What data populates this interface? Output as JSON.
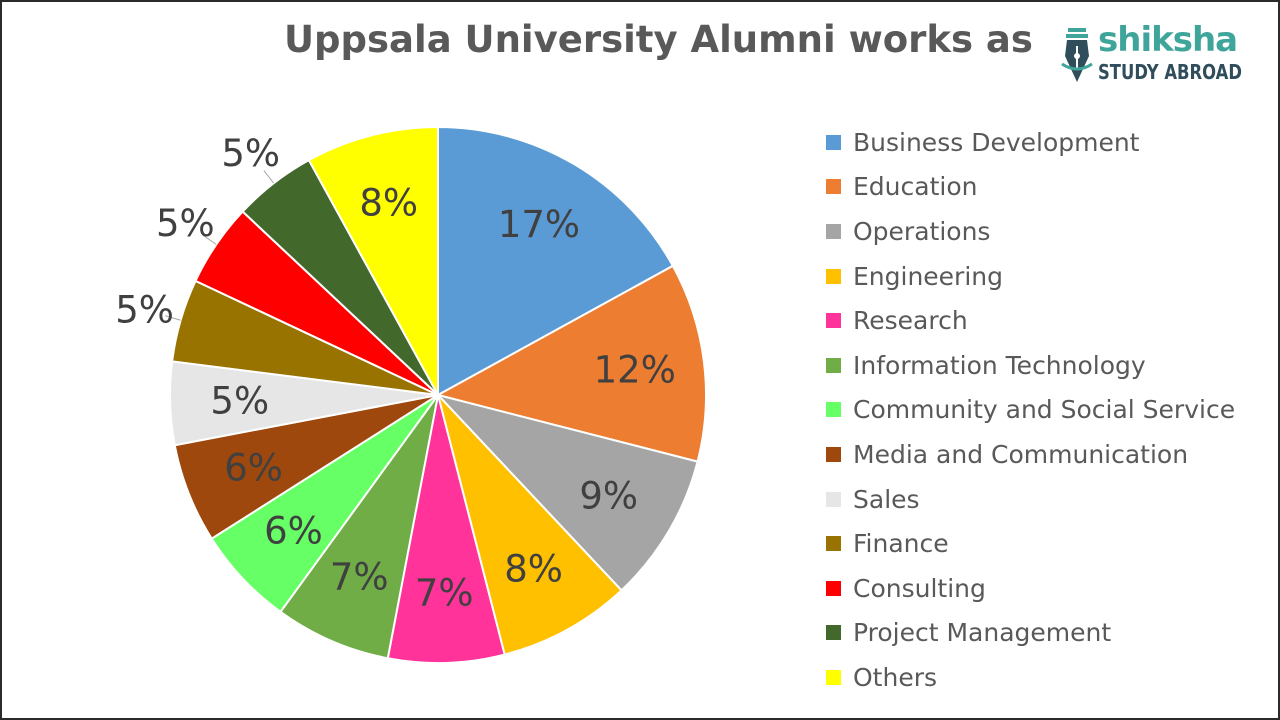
{
  "title": "Uppsala University Alumni works as",
  "logo": {
    "word": "shiksha",
    "subtitle": "STUDY ABROAD",
    "icon": "pen-nib-icon"
  },
  "colors": {
    "title": "#595959",
    "label": "#404040",
    "logo_primary": "#3fa59b",
    "logo_secondary": "#2f4d5b"
  },
  "chart_data": {
    "type": "pie",
    "title": "Uppsala University Alumni works as",
    "legend_position": "right",
    "start_angle": "top",
    "direction": "clockwise",
    "slices": [
      {
        "label": "Business Development",
        "value": 17,
        "value_label": "17%",
        "color": "#5b9bd5"
      },
      {
        "label": "Education",
        "value": 12,
        "value_label": "12%",
        "color": "#ed7d31"
      },
      {
        "label": "Operations",
        "value": 9,
        "value_label": "9%",
        "color": "#a5a5a5"
      },
      {
        "label": "Engineering",
        "value": 8,
        "value_label": "8%",
        "color": "#ffc000"
      },
      {
        "label": "Research",
        "value": 7,
        "value_label": "7%",
        "color": "#ff3399"
      },
      {
        "label": "Information Technology",
        "value": 7,
        "value_label": "7%",
        "color": "#70ad47"
      },
      {
        "label": "Community and Social Service",
        "value": 6,
        "value_label": "6%",
        "color": "#66ff66"
      },
      {
        "label": "Media and Communication",
        "value": 6,
        "value_label": "6%",
        "color": "#9e480e"
      },
      {
        "label": "Sales",
        "value": 5,
        "value_label": "5%",
        "color": "#e7e6e6"
      },
      {
        "label": "Finance",
        "value": 5,
        "value_label": "5%",
        "color": "#997300"
      },
      {
        "label": "Consulting",
        "value": 5,
        "value_label": "5%",
        "color": "#ff0000"
      },
      {
        "label": "Project Management",
        "value": 5,
        "value_label": "5%",
        "color": "#43682b"
      },
      {
        "label": "Others",
        "value": 8,
        "value_label": "8%",
        "color": "#ffff00"
      }
    ]
  }
}
